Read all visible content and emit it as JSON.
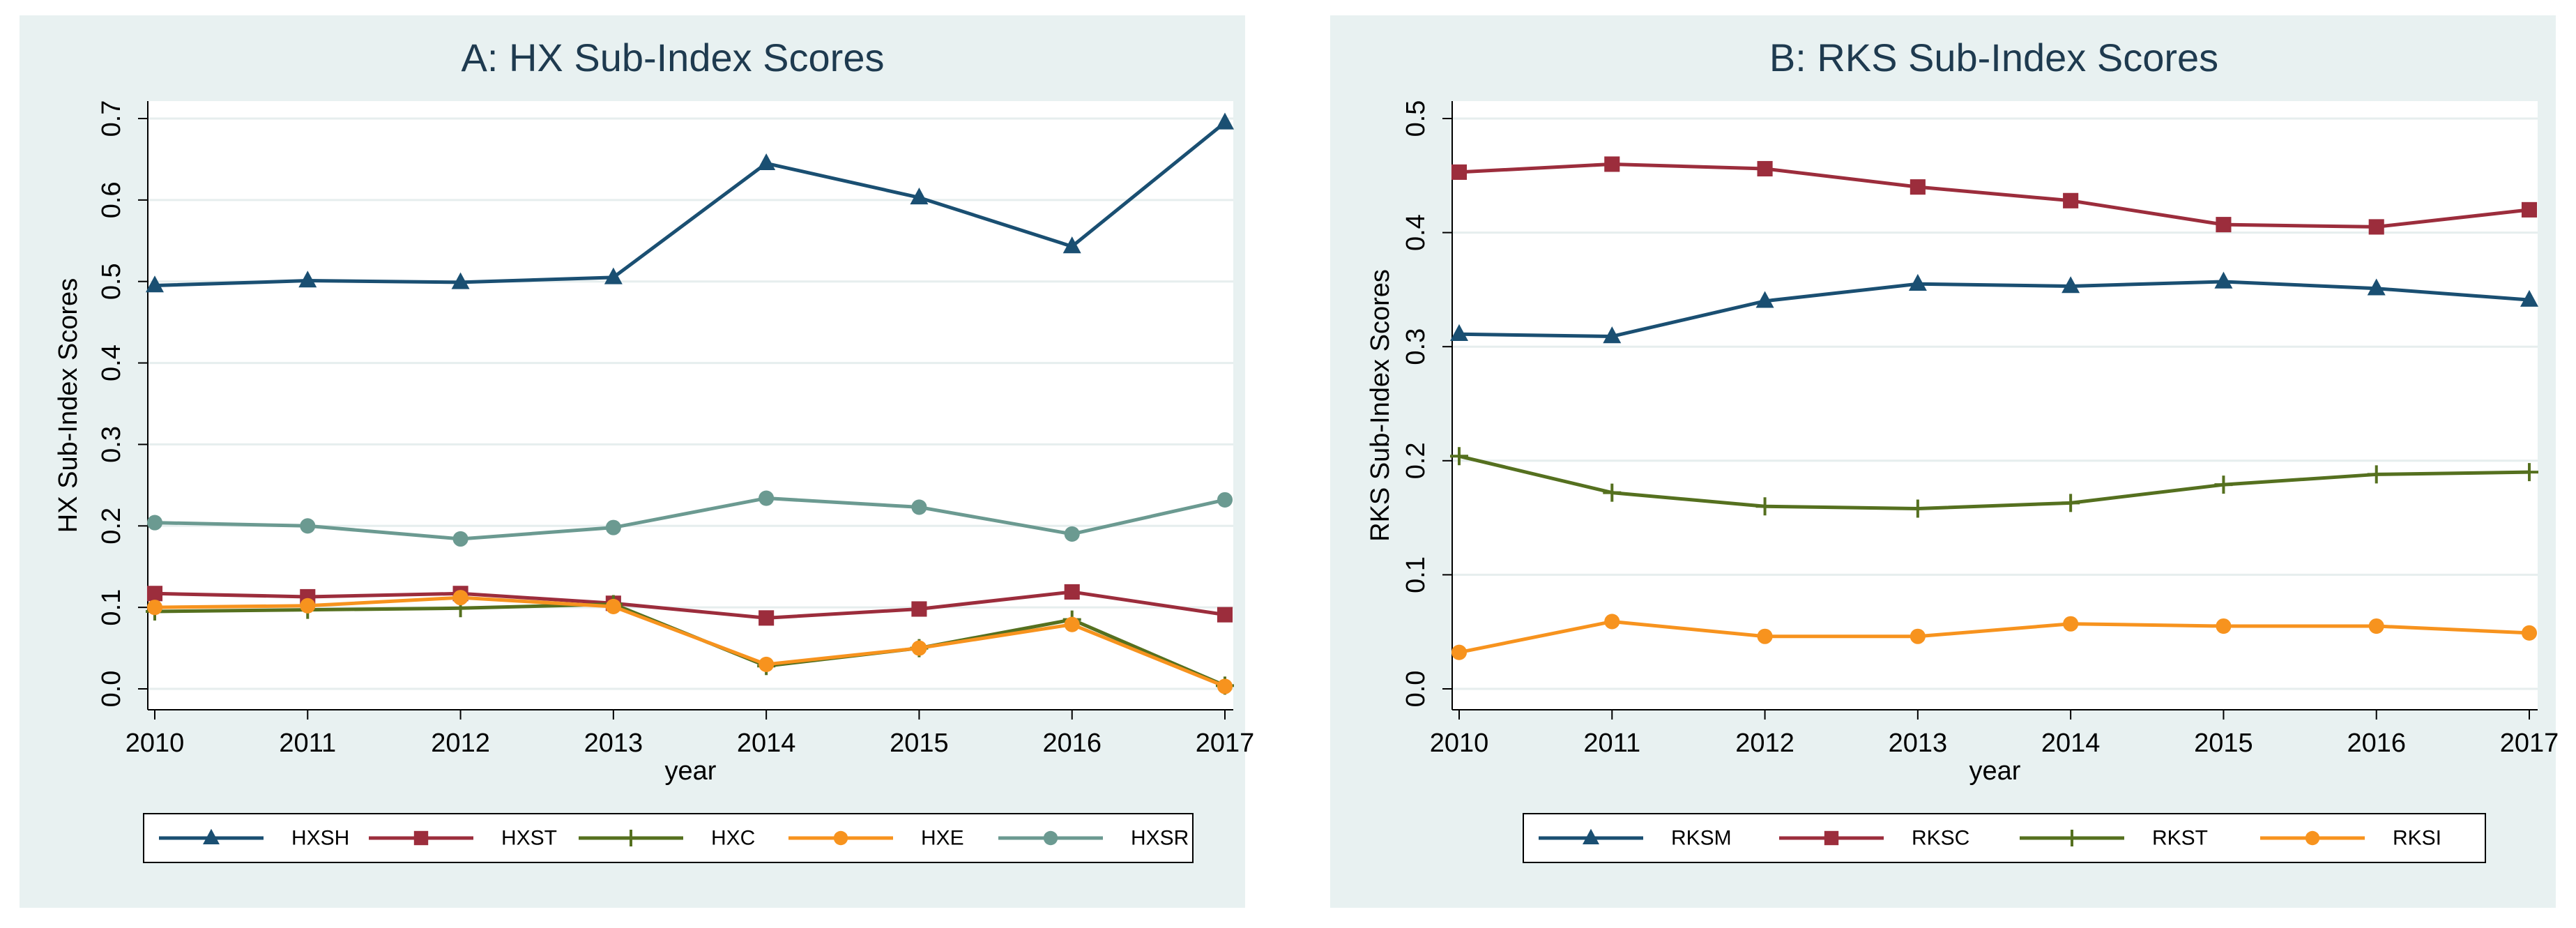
{
  "chart_data": [
    {
      "type": "line",
      "title": "A: HX Sub-Index Scores",
      "xlabel": "year",
      "ylabel": "HX Sub-Index Scores",
      "x": [
        2010,
        2011,
        2012,
        2013,
        2014,
        2015,
        2016,
        2017
      ],
      "xlim": [
        2010,
        2017
      ],
      "ylim": [
        0,
        0.7
      ],
      "yticks": [
        "0.0",
        "0.1",
        "0.2",
        "0.3",
        "0.4",
        "0.5",
        "0.6",
        "0.7"
      ],
      "grid": true,
      "legend_position": "bottom",
      "series": [
        {
          "name": "HXSH",
          "color": "#1a4f72",
          "marker": "triangle",
          "values": [
            0.495,
            0.501,
            0.499,
            0.505,
            0.645,
            0.603,
            0.543,
            0.695
          ]
        },
        {
          "name": "HXST",
          "color": "#9c2d3c",
          "marker": "square",
          "values": [
            0.117,
            0.113,
            0.117,
            0.105,
            0.087,
            0.098,
            0.119,
            0.091
          ]
        },
        {
          "name": "HXC",
          "color": "#55701f",
          "marker": "plus",
          "values": [
            0.095,
            0.097,
            0.099,
            0.104,
            0.028,
            0.05,
            0.085,
            0.004
          ]
        },
        {
          "name": "HXE",
          "color": "#f7931e",
          "marker": "circle",
          "values": [
            0.1,
            0.102,
            0.112,
            0.101,
            0.03,
            0.05,
            0.079,
            0.003
          ]
        },
        {
          "name": "HXSR",
          "color": "#6b9a91",
          "marker": "circle",
          "values": [
            0.204,
            0.2,
            0.184,
            0.198,
            0.234,
            0.223,
            0.19,
            0.232
          ]
        }
      ]
    },
    {
      "type": "line",
      "title": "B: RKS Sub-Index Scores",
      "xlabel": "year",
      "ylabel": "RKS Sub-Index Scores",
      "x": [
        2010,
        2011,
        2012,
        2013,
        2014,
        2015,
        2016,
        2017
      ],
      "xlim": [
        2010,
        2017
      ],
      "ylim": [
        0,
        0.5
      ],
      "yticks": [
        "0.0",
        "0.1",
        "0.2",
        "0.3",
        "0.4",
        "0.5"
      ],
      "grid": true,
      "legend_position": "bottom",
      "series": [
        {
          "name": "RKSM",
          "color": "#1a4f72",
          "marker": "triangle",
          "values": [
            0.311,
            0.309,
            0.34,
            0.355,
            0.353,
            0.357,
            0.351,
            0.341
          ]
        },
        {
          "name": "RKSC",
          "color": "#9c2d3c",
          "marker": "square",
          "values": [
            0.453,
            0.46,
            0.456,
            0.44,
            0.428,
            0.407,
            0.405,
            0.42
          ]
        },
        {
          "name": "RKST",
          "color": "#55701f",
          "marker": "plus",
          "values": [
            0.204,
            0.172,
            0.16,
            0.158,
            0.163,
            0.179,
            0.188,
            0.19
          ]
        },
        {
          "name": "RKSI",
          "color": "#f7931e",
          "marker": "circle",
          "values": [
            0.032,
            0.059,
            0.046,
            0.046,
            0.057,
            0.055,
            0.055,
            0.049
          ]
        }
      ]
    }
  ]
}
